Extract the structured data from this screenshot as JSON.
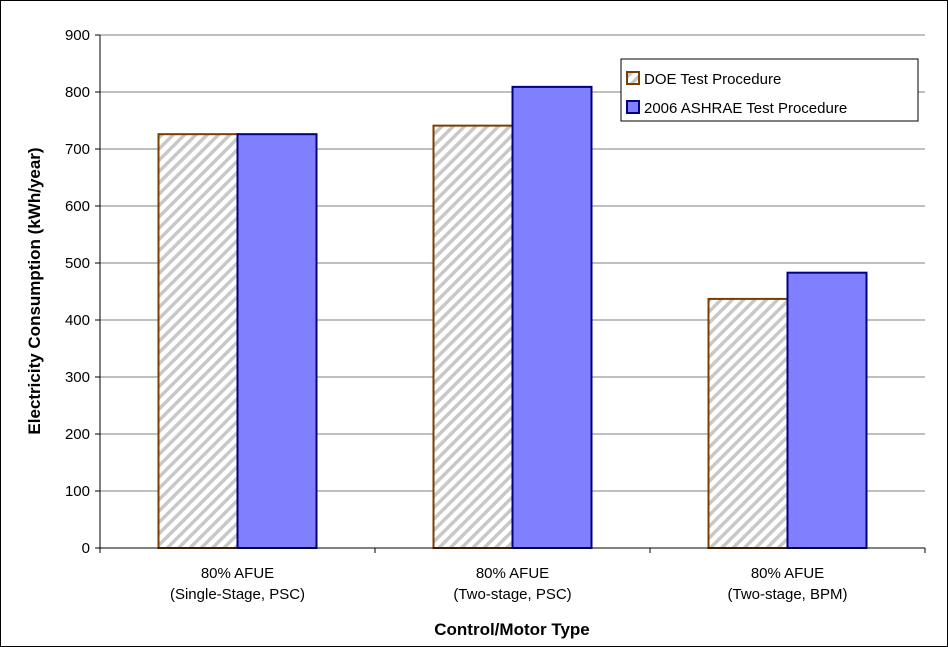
{
  "chart_data": {
    "type": "bar",
    "categories": [
      [
        "80% AFUE",
        "(Single-Stage, PSC)"
      ],
      [
        "80% AFUE",
        "(Two-stage, PSC)"
      ],
      [
        "80% AFUE",
        "(Two-stage, BPM)"
      ]
    ],
    "series": [
      {
        "name": "DOE Test Procedure",
        "values": [
          726,
          741,
          437
        ],
        "color": "#e8e8e8",
        "stroke": "#7a3e00",
        "pattern": "diagonal-hatch"
      },
      {
        "name": "2006 ASHRAE Test Procedure",
        "values": [
          726,
          809,
          483
        ],
        "color": "#8080ff",
        "stroke": "#000080"
      }
    ],
    "xlabel": "Control/Motor Type",
    "ylabel": "Electricity Consumption (kWh/year)",
    "ylim": [
      0,
      900
    ],
    "yticks": [
      0,
      100,
      200,
      300,
      400,
      500,
      600,
      700,
      800,
      900
    ],
    "grid": true,
    "legend_position": "top-right"
  }
}
